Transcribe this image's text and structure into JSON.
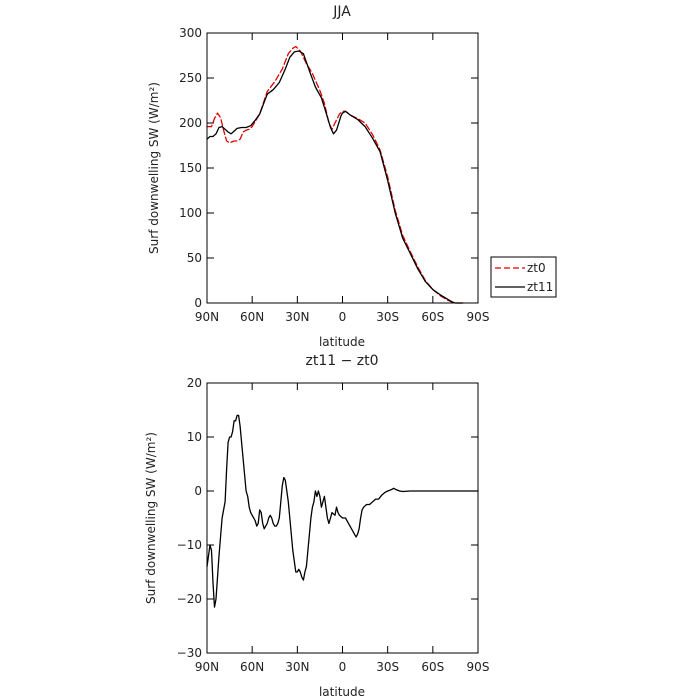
{
  "chart_data": [
    {
      "type": "line",
      "title": "JJA",
      "xlabel": "latitude",
      "ylabel": "Surf downwelling SW (W/m²)",
      "xlim": [
        90,
        -90
      ],
      "ylim": [
        0,
        300
      ],
      "x_ticks": [
        90,
        60,
        30,
        0,
        -30,
        -60,
        -90
      ],
      "x_tick_labels": [
        "90N",
        "60N",
        "30N",
        "0",
        "30S",
        "60S",
        "90S"
      ],
      "y_ticks": [
        0,
        50,
        100,
        150,
        200,
        250,
        300
      ],
      "y_tick_labels": [
        "0",
        "50",
        "100",
        "150",
        "200",
        "250",
        "300"
      ],
      "legend": "outside-right",
      "series": [
        {
          "name": "zt0",
          "color": "#e00000",
          "dash": "dashed",
          "points": [
            [
              90,
              196
            ],
            [
              87,
              196
            ],
            [
              85,
              205
            ],
            [
              83,
              211
            ],
            [
              81,
              206
            ],
            [
              79,
              192
            ],
            [
              77,
              180
            ],
            [
              75,
              178
            ],
            [
              72,
              180
            ],
            [
              70,
              180
            ],
            [
              68,
              182
            ],
            [
              66,
              190
            ],
            [
              64,
              192
            ],
            [
              62,
              193
            ],
            [
              60,
              196
            ],
            [
              55,
              210
            ],
            [
              50,
              235
            ],
            [
              45,
              246
            ],
            [
              40,
              260
            ],
            [
              36,
              277
            ],
            [
              33,
              283
            ],
            [
              31,
              285
            ],
            [
              28,
              280
            ],
            [
              24,
              266
            ],
            [
              20,
              255
            ],
            [
              15,
              236
            ],
            [
              12,
              222
            ],
            [
              9,
              200
            ],
            [
              7,
              193
            ],
            [
              5,
              200
            ],
            [
              2,
              210
            ],
            [
              0,
              213
            ],
            [
              -2,
              213
            ],
            [
              -5,
              209
            ],
            [
              -10,
              205
            ],
            [
              -15,
              200
            ],
            [
              -20,
              187
            ],
            [
              -25,
              170
            ],
            [
              -30,
              140
            ],
            [
              -35,
              103
            ],
            [
              -40,
              75
            ],
            [
              -45,
              57
            ],
            [
              -50,
              40
            ],
            [
              -55,
              25
            ],
            [
              -60,
              15
            ],
            [
              -65,
              8
            ],
            [
              -70,
              3
            ],
            [
              -73,
              1
            ],
            [
              -75,
              0
            ],
            [
              -80,
              0
            ]
          ]
        },
        {
          "name": "zt11",
          "color": "#000000",
          "dash": "solid",
          "points": [
            [
              90,
              182
            ],
            [
              88,
              185
            ],
            [
              86,
              185
            ],
            [
              84,
              188
            ],
            [
              82,
              195
            ],
            [
              80,
              196
            ],
            [
              78,
              193
            ],
            [
              76,
              190
            ],
            [
              74,
              188
            ],
            [
              72,
              191
            ],
            [
              70,
              194
            ],
            [
              67,
              195
            ],
            [
              64,
              195
            ],
            [
              61,
              197
            ],
            [
              58,
              203
            ],
            [
              55,
              210
            ],
            [
              50,
              232
            ],
            [
              46,
              237
            ],
            [
              42,
              245
            ],
            [
              38,
              260
            ],
            [
              35,
              273
            ],
            [
              32,
              279
            ],
            [
              29,
              280
            ],
            [
              26,
              277
            ],
            [
              22,
              258
            ],
            [
              18,
              240
            ],
            [
              14,
              228
            ],
            [
              11,
              212
            ],
            [
              8,
              195
            ],
            [
              6,
              188
            ],
            [
              4,
              192
            ],
            [
              1,
              208
            ],
            [
              0,
              211
            ],
            [
              -2,
              213
            ],
            [
              -5,
              209
            ],
            [
              -10,
              204
            ],
            [
              -15,
              196
            ],
            [
              -20,
              183
            ],
            [
              -25,
              168
            ],
            [
              -30,
              136
            ],
            [
              -35,
              100
            ],
            [
              -40,
              72
            ],
            [
              -45,
              55
            ],
            [
              -50,
              38
            ],
            [
              -55,
              24
            ],
            [
              -60,
              15
            ],
            [
              -65,
              9
            ],
            [
              -70,
              4
            ],
            [
              -73,
              1
            ],
            [
              -75,
              0
            ],
            [
              -80,
              0
            ]
          ]
        }
      ]
    },
    {
      "type": "line",
      "title": "zt11 − zt0",
      "xlabel": "latitude",
      "ylabel": "Surf downwelling SW (W/m²)",
      "xlim": [
        90,
        -90
      ],
      "ylim": [
        -30,
        20
      ],
      "x_ticks": [
        90,
        60,
        30,
        0,
        -30,
        -60,
        -90
      ],
      "x_tick_labels": [
        "90N",
        "60N",
        "30N",
        "0",
        "30S",
        "60S",
        "90S"
      ],
      "y_ticks": [
        -30,
        -20,
        -10,
        0,
        10,
        20
      ],
      "y_tick_labels": [
        "−30",
        "−20",
        "−10",
        "0",
        "10",
        "20"
      ],
      "series": [
        {
          "color": "#000000",
          "dash": "solid",
          "points": [
            [
              90,
              -14
            ],
            [
              89,
              -12
            ],
            [
              88,
              -10
            ],
            [
              87,
              -11
            ],
            [
              86,
              -17
            ],
            [
              85,
              -21.5
            ],
            [
              84,
              -20
            ],
            [
              83,
              -16
            ],
            [
              82,
              -12
            ],
            [
              80,
              -5
            ],
            [
              78,
              -2
            ],
            [
              77,
              4
            ],
            [
              76,
              9
            ],
            [
              75,
              10
            ],
            [
              74,
              10
            ],
            [
              73,
              11
            ],
            [
              72,
              13
            ],
            [
              71,
              13
            ],
            [
              70,
              14
            ],
            [
              69,
              14
            ],
            [
              68,
              12
            ],
            [
              67,
              9
            ],
            [
              66,
              6
            ],
            [
              65,
              3
            ],
            [
              64,
              0
            ],
            [
              63,
              -1
            ],
            [
              62,
              -3
            ],
            [
              61,
              -4
            ],
            [
              60,
              -4.5
            ],
            [
              58,
              -5.5
            ],
            [
              57,
              -6.5
            ],
            [
              56,
              -6
            ],
            [
              55,
              -3.5
            ],
            [
              54,
              -4
            ],
            [
              53,
              -6
            ],
            [
              52,
              -7
            ],
            [
              51,
              -6.5
            ],
            [
              50,
              -6
            ],
            [
              49,
              -5
            ],
            [
              48,
              -4.5
            ],
            [
              47,
              -5
            ],
            [
              46,
              -6
            ],
            [
              45,
              -6.5
            ],
            [
              44,
              -6.5
            ],
            [
              43,
              -6
            ],
            [
              42,
              -5
            ],
            [
              41,
              -2
            ],
            [
              40,
              1
            ],
            [
              39,
              2.5
            ],
            [
              38,
              2
            ],
            [
              37,
              0
            ],
            [
              36,
              -2
            ],
            [
              35,
              -5
            ],
            [
              34,
              -8
            ],
            [
              33,
              -11
            ],
            [
              32,
              -13
            ],
            [
              31,
              -15
            ],
            [
              30,
              -15
            ],
            [
              29,
              -14.5
            ],
            [
              28,
              -15
            ],
            [
              27,
              -16
            ],
            [
              26,
              -16.5
            ],
            [
              25,
              -15
            ],
            [
              24,
              -14
            ],
            [
              23,
              -11
            ],
            [
              22,
              -8
            ],
            [
              21,
              -5
            ],
            [
              20,
              -3
            ],
            [
              19,
              -2
            ],
            [
              18,
              0
            ],
            [
              17,
              -1
            ],
            [
              16,
              0
            ],
            [
              15,
              -1
            ],
            [
              14,
              -3
            ],
            [
              13,
              -2
            ],
            [
              12,
              -1
            ],
            [
              11,
              -3
            ],
            [
              10,
              -5
            ],
            [
              9,
              -6
            ],
            [
              8,
              -5
            ],
            [
              7,
              -4
            ],
            [
              5,
              -4.5
            ],
            [
              4,
              -3
            ],
            [
              3,
              -4
            ],
            [
              2,
              -4.5
            ],
            [
              0,
              -5
            ],
            [
              -2,
              -5
            ],
            [
              -4,
              -6
            ],
            [
              -6,
              -7
            ],
            [
              -8,
              -8
            ],
            [
              -9,
              -8.5
            ],
            [
              -10,
              -8
            ],
            [
              -11,
              -7
            ],
            [
              -12,
              -5
            ],
            [
              -13,
              -3.5
            ],
            [
              -14,
              -3
            ],
            [
              -16,
              -2.5
            ],
            [
              -18,
              -2.5
            ],
            [
              -20,
              -2
            ],
            [
              -22,
              -1.5
            ],
            [
              -24,
              -1.5
            ],
            [
              -26,
              -0.8
            ],
            [
              -28,
              -0.3
            ],
            [
              -30,
              0
            ],
            [
              -32,
              0.2
            ],
            [
              -34,
              0.5
            ],
            [
              -36,
              0.2
            ],
            [
              -38,
              0
            ],
            [
              -40,
              -0.1
            ],
            [
              -45,
              0
            ],
            [
              -50,
              0
            ],
            [
              -60,
              0
            ],
            [
              -70,
              0
            ],
            [
              -80,
              0
            ],
            [
              -90,
              0
            ]
          ]
        }
      ]
    }
  ]
}
